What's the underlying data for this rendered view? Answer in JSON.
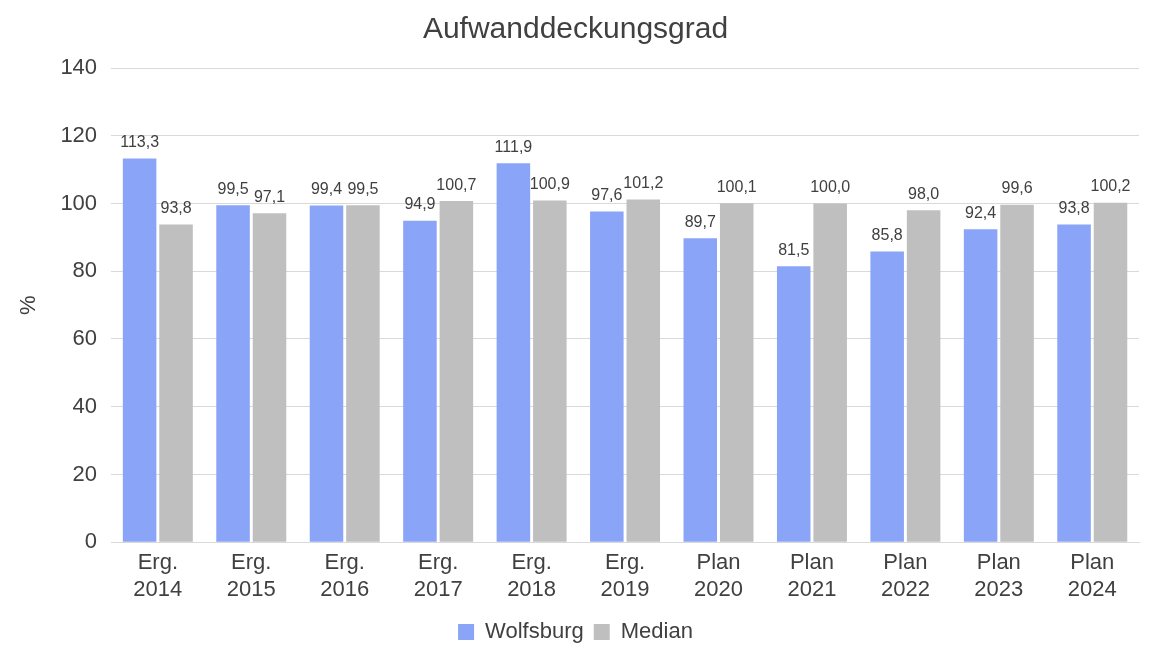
{
  "chart_data": {
    "type": "bar",
    "title": "Aufwanddeckungsgrad",
    "ylabel": "%",
    "categories": [
      "Erg. 2014",
      "Erg. 2015",
      "Erg. 2016",
      "Erg. 2017",
      "Erg. 2018",
      "Erg. 2019",
      "Plan 2020",
      "Plan 2021",
      "Plan 2022",
      "Plan 2023",
      "Plan 2024"
    ],
    "series": [
      {
        "name": "Wolfsburg",
        "color": "#8aa4f8",
        "values": [
          113.3,
          99.5,
          99.4,
          94.9,
          111.9,
          97.6,
          89.7,
          81.5,
          85.8,
          92.4,
          93.8
        ],
        "value_labels": [
          "113,3",
          "99,5",
          "99,4",
          "94,9",
          "111,9",
          "97,6",
          "89,7",
          "81,5",
          "85,8",
          "92,4",
          "93,8"
        ]
      },
      {
        "name": "Median",
        "color": "#bfbfbf",
        "values": [
          93.8,
          97.1,
          99.5,
          100.7,
          100.9,
          101.2,
          100.1,
          100.0,
          98.0,
          99.6,
          100.2
        ],
        "value_labels": [
          "93,8",
          "97,1",
          "99,5",
          "100,7",
          "100,9",
          "101,2",
          "100,1",
          "100,0",
          "98,0",
          "99,6",
          "100,2"
        ]
      }
    ],
    "ylim": [
      0,
      140
    ],
    "yticks": [
      0,
      20,
      40,
      60,
      80,
      100,
      120,
      140
    ],
    "grid": "y",
    "legend": "bottom"
  }
}
